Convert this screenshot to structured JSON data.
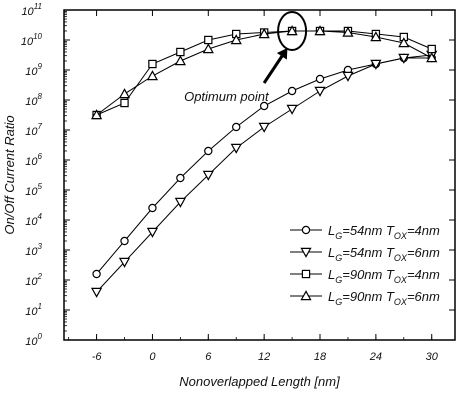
{
  "chart_data": {
    "type": "line",
    "xlabel": "Nonoverlapped Length [nm]",
    "ylabel": "On/Off Current Ratio",
    "x_ticks": [
      -6,
      0,
      6,
      12,
      18,
      24,
      30
    ],
    "xlim": [
      -9.5,
      32.5
    ],
    "ylim": [
      0,
      11
    ],
    "y_scale": "log10",
    "y_ticks": [
      {
        "base": "10",
        "exp": "0"
      },
      {
        "base": "10",
        "exp": "1"
      },
      {
        "base": "10",
        "exp": "2"
      },
      {
        "base": "10",
        "exp": "3"
      },
      {
        "base": "10",
        "exp": "4"
      },
      {
        "base": "10",
        "exp": "5"
      },
      {
        "base": "10",
        "exp": "6"
      },
      {
        "base": "10",
        "exp": "7"
      },
      {
        "base": "10",
        "exp": "8"
      },
      {
        "base": "10",
        "exp": "9"
      },
      {
        "base": "10",
        "exp": "10"
      },
      {
        "base": "10",
        "exp": "11"
      }
    ],
    "x": [
      -6,
      -3,
      0,
      3,
      6,
      9,
      12,
      15,
      18,
      21,
      24,
      27,
      30
    ],
    "series": [
      {
        "marker": "circle",
        "log10_values": [
          2.2,
          3.3,
          4.4,
          5.4,
          6.3,
          7.1,
          7.8,
          8.3,
          8.7,
          9.0,
          9.2,
          9.4,
          9.4
        ],
        "legend": {
          "main": "L",
          "sub1": "G",
          "mid": "=54nm T",
          "sub2": "OX",
          "end": "=4nm"
        }
      },
      {
        "marker": "triangle-down",
        "log10_values": [
          1.6,
          2.6,
          3.6,
          4.6,
          5.5,
          6.4,
          7.1,
          7.7,
          8.3,
          8.8,
          9.2,
          9.4,
          9.5
        ],
        "legend": {
          "main": "L",
          "sub1": "G",
          "mid": "=54nm T",
          "sub2": "OX",
          "end": "=6nm"
        }
      },
      {
        "marker": "square",
        "log10_values": [
          7.5,
          7.9,
          9.2,
          9.6,
          10.0,
          10.2,
          10.25,
          10.3,
          10.3,
          10.3,
          10.2,
          10.1,
          9.7
        ],
        "legend": {
          "main": "L",
          "sub1": "G",
          "mid": "=90nm T",
          "sub2": "OX",
          "end": "=4nm"
        }
      },
      {
        "marker": "triangle-up",
        "log10_values": [
          7.5,
          8.2,
          8.8,
          9.3,
          9.7,
          10.0,
          10.2,
          10.3,
          10.3,
          10.25,
          10.1,
          9.9,
          9.4
        ],
        "legend": {
          "main": "L",
          "sub1": "G",
          "mid": "=90nm T",
          "sub2": "OX",
          "end": "=6nm"
        }
      }
    ],
    "annotation": {
      "text": "Optimum point",
      "x": 15,
      "log10_y": 10.3
    },
    "legend_position": "lower-right",
    "grid": false
  }
}
